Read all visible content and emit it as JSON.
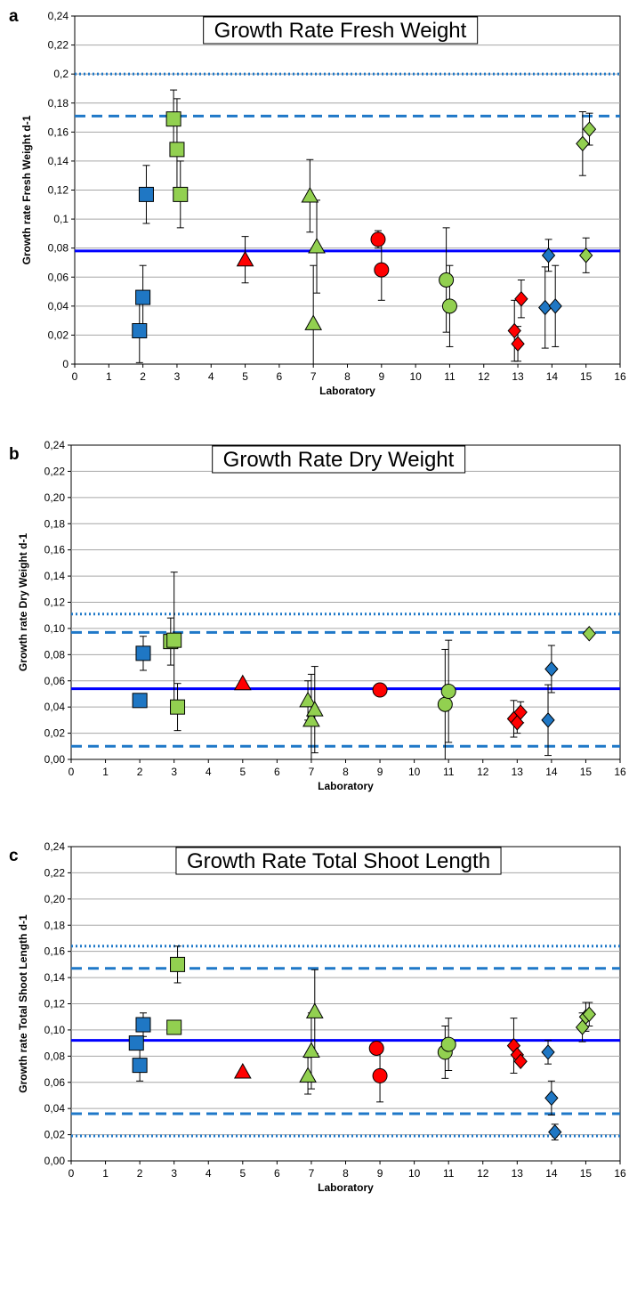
{
  "colors": {
    "lab_blue": "#1f77c4",
    "lab_green": "#92d050",
    "lab_red": "#ff0000",
    "mean_line": "#0000ff",
    "limit_line": "#1f78c8",
    "grid": "#a6a6a6"
  },
  "chart_data": [
    {
      "panel": "a",
      "type": "scatter",
      "title": "Growth Rate Fresh Weight",
      "xlabel": "Laboratory",
      "ylabel": "Growth rate Fresh Weight d-1",
      "xlim": [
        0,
        16
      ],
      "ylim": [
        0,
        0.24
      ],
      "x_ticks": [
        "0",
        "1",
        "2",
        "3",
        "4",
        "5",
        "6",
        "7",
        "8",
        "9",
        "10",
        "11",
        "12",
        "13",
        "14",
        "15",
        "16"
      ],
      "y_ticks": [
        "0",
        "0,02",
        "0,04",
        "0,06",
        "0,08",
        "0,1",
        "0,12",
        "0,14",
        "0,16",
        "0,18",
        "0,2",
        "0,22",
        "0,24"
      ],
      "grid": true,
      "reference_lines": [
        {
          "style": "solid",
          "y": 0.078
        },
        {
          "style": "dashed",
          "y": 0.171
        },
        {
          "style": "dotted",
          "y": 0.2
        }
      ],
      "points": [
        {
          "x": 1.9,
          "y": 0.023,
          "err": 0.022,
          "shape": "square",
          "color": "blue"
        },
        {
          "x": 2.0,
          "y": 0.046,
          "err": 0.022,
          "shape": "square",
          "color": "blue"
        },
        {
          "x": 2.1,
          "y": 0.117,
          "err": 0.02,
          "shape": "square",
          "color": "blue"
        },
        {
          "x": 2.9,
          "y": 0.169,
          "err": 0.02,
          "shape": "square",
          "color": "green"
        },
        {
          "x": 3.0,
          "y": 0.148,
          "err": 0.035,
          "shape": "square",
          "color": "green"
        },
        {
          "x": 3.1,
          "y": 0.117,
          "err": 0.023,
          "shape": "square",
          "color": "green"
        },
        {
          "x": 5.0,
          "y": 0.072,
          "err": 0.016,
          "shape": "triangle",
          "color": "red"
        },
        {
          "x": 6.9,
          "y": 0.116,
          "err": 0.025,
          "shape": "triangle",
          "color": "green"
        },
        {
          "x": 7.0,
          "y": 0.028,
          "err": 0.04,
          "shape": "triangle",
          "color": "green"
        },
        {
          "x": 7.1,
          "y": 0.081,
          "err": 0.032,
          "shape": "triangle",
          "color": "green"
        },
        {
          "x": 8.9,
          "y": 0.086,
          "err": 0.006,
          "shape": "circle",
          "color": "red"
        },
        {
          "x": 9.0,
          "y": 0.065,
          "err": 0.021,
          "shape": "circle",
          "color": "red"
        },
        {
          "x": 10.9,
          "y": 0.058,
          "err": 0.036,
          "shape": "circle",
          "color": "green"
        },
        {
          "x": 11.0,
          "y": 0.04,
          "err": 0.028,
          "shape": "circle",
          "color": "green"
        },
        {
          "x": 12.9,
          "y": 0.023,
          "err": 0.021,
          "shape": "diamond",
          "color": "red"
        },
        {
          "x": 13.0,
          "y": 0.014,
          "err": 0.012,
          "shape": "diamond",
          "color": "red"
        },
        {
          "x": 13.1,
          "y": 0.045,
          "err": 0.013,
          "shape": "diamond",
          "color": "red"
        },
        {
          "x": 13.8,
          "y": 0.039,
          "err": 0.028,
          "shape": "diamond",
          "color": "blue"
        },
        {
          "x": 13.9,
          "y": 0.075,
          "err": 0.011,
          "shape": "diamond",
          "color": "blue"
        },
        {
          "x": 14.1,
          "y": 0.04,
          "err": 0.028,
          "shape": "diamond",
          "color": "blue"
        },
        {
          "x": 14.9,
          "y": 0.152,
          "err": 0.022,
          "shape": "diamond",
          "color": "green"
        },
        {
          "x": 15.0,
          "y": 0.075,
          "err": 0.012,
          "shape": "diamond",
          "color": "green"
        },
        {
          "x": 15.1,
          "y": 0.162,
          "err": 0.011,
          "shape": "diamond",
          "color": "green"
        }
      ]
    },
    {
      "panel": "b",
      "type": "scatter",
      "title": "Growth Rate Dry Weight",
      "xlabel": "Laboratory",
      "ylabel": "Growth rate Dry Weight d-1",
      "xlim": [
        0,
        16
      ],
      "ylim": [
        0,
        0.24
      ],
      "x_ticks": [
        "0",
        "1",
        "2",
        "3",
        "4",
        "5",
        "6",
        "7",
        "8",
        "9",
        "10",
        "11",
        "12",
        "13",
        "14",
        "15",
        "16"
      ],
      "y_ticks": [
        "0,00",
        "0,02",
        "0,04",
        "0,06",
        "0,08",
        "0,10",
        "0,12",
        "0,14",
        "0,16",
        "0,18",
        "0,20",
        "0,22",
        "0,24"
      ],
      "grid": true,
      "reference_lines": [
        {
          "style": "solid",
          "y": 0.054
        },
        {
          "style": "dashed",
          "y": 0.097
        },
        {
          "style": "dashed",
          "y": 0.01
        },
        {
          "style": "dotted",
          "y": 0.111
        }
      ],
      "points": [
        {
          "x": 2.0,
          "y": 0.045,
          "err": 0.0,
          "shape": "square",
          "color": "blue"
        },
        {
          "x": 2.1,
          "y": 0.081,
          "err": 0.013,
          "shape": "square",
          "color": "blue"
        },
        {
          "x": 2.9,
          "y": 0.09,
          "err": 0.018,
          "shape": "square",
          "color": "green"
        },
        {
          "x": 3.0,
          "y": 0.091,
          "err": 0.052,
          "shape": "square",
          "color": "green"
        },
        {
          "x": 3.1,
          "y": 0.04,
          "err": 0.018,
          "shape": "square",
          "color": "green"
        },
        {
          "x": 5.0,
          "y": 0.058,
          "err": 0.0,
          "shape": "triangle",
          "color": "red"
        },
        {
          "x": 6.9,
          "y": 0.045,
          "err": 0.015,
          "shape": "triangle",
          "color": "green"
        },
        {
          "x": 7.0,
          "y": 0.03,
          "err": 0.035,
          "shape": "triangle",
          "color": "green"
        },
        {
          "x": 7.1,
          "y": 0.038,
          "err": 0.033,
          "shape": "triangle",
          "color": "green"
        },
        {
          "x": 9.0,
          "y": 0.053,
          "err": 0.0,
          "shape": "circle",
          "color": "red"
        },
        {
          "x": 10.9,
          "y": 0.042,
          "err": 0.042,
          "shape": "circle",
          "color": "green"
        },
        {
          "x": 11.0,
          "y": 0.052,
          "err": 0.039,
          "shape": "circle",
          "color": "green"
        },
        {
          "x": 12.9,
          "y": 0.031,
          "err": 0.014,
          "shape": "diamond",
          "color": "red"
        },
        {
          "x": 13.0,
          "y": 0.028,
          "err": 0.008,
          "shape": "diamond",
          "color": "red"
        },
        {
          "x": 13.1,
          "y": 0.036,
          "err": 0.008,
          "shape": "diamond",
          "color": "red"
        },
        {
          "x": 13.9,
          "y": 0.03,
          "err": 0.027,
          "shape": "diamond",
          "color": "blue"
        },
        {
          "x": 14.0,
          "y": 0.069,
          "err": 0.018,
          "shape": "diamond",
          "color": "blue"
        },
        {
          "x": 15.1,
          "y": 0.096,
          "err": 0.0,
          "shape": "diamond",
          "color": "green"
        }
      ]
    },
    {
      "panel": "c",
      "type": "scatter",
      "title": "Growth Rate Total Shoot Length",
      "xlabel": "Laboratory",
      "ylabel": "Growth rate Total Shoot Length d-1",
      "xlim": [
        0,
        16
      ],
      "ylim": [
        0,
        0.24
      ],
      "x_ticks": [
        "0",
        "1",
        "2",
        "3",
        "4",
        "5",
        "6",
        "7",
        "8",
        "9",
        "10",
        "11",
        "12",
        "13",
        "14",
        "15",
        "16"
      ],
      "y_ticks": [
        "0,00",
        "0,02",
        "0,04",
        "0,06",
        "0,08",
        "0,10",
        "0,12",
        "0,14",
        "0,16",
        "0,18",
        "0,20",
        "0,22",
        "0,24"
      ],
      "grid": true,
      "reference_lines": [
        {
          "style": "solid",
          "y": 0.092
        },
        {
          "style": "dashed",
          "y": 0.147
        },
        {
          "style": "dashed",
          "y": 0.036
        },
        {
          "style": "dotted",
          "y": 0.164
        },
        {
          "style": "dotted",
          "y": 0.019
        }
      ],
      "points": [
        {
          "x": 1.9,
          "y": 0.09,
          "err": 0.0,
          "shape": "square",
          "color": "blue"
        },
        {
          "x": 2.0,
          "y": 0.073,
          "err": 0.012,
          "shape": "square",
          "color": "blue"
        },
        {
          "x": 2.1,
          "y": 0.104,
          "err": 0.009,
          "shape": "square",
          "color": "blue"
        },
        {
          "x": 3.0,
          "y": 0.102,
          "err": 0.0,
          "shape": "square",
          "color": "green"
        },
        {
          "x": 3.1,
          "y": 0.15,
          "err": 0.014,
          "shape": "square",
          "color": "green"
        },
        {
          "x": 5.0,
          "y": 0.068,
          "err": 0.0,
          "shape": "triangle",
          "color": "red"
        },
        {
          "x": 6.9,
          "y": 0.065,
          "err": 0.014,
          "shape": "triangle",
          "color": "green"
        },
        {
          "x": 7.0,
          "y": 0.084,
          "err": 0.029,
          "shape": "triangle",
          "color": "green"
        },
        {
          "x": 7.1,
          "y": 0.114,
          "err": 0.032,
          "shape": "triangle",
          "color": "green"
        },
        {
          "x": 8.9,
          "y": 0.086,
          "err": 0.0,
          "shape": "circle",
          "color": "red"
        },
        {
          "x": 9.0,
          "y": 0.065,
          "err": 0.02,
          "shape": "circle",
          "color": "red"
        },
        {
          "x": 10.9,
          "y": 0.083,
          "err": 0.02,
          "shape": "circle",
          "color": "green"
        },
        {
          "x": 11.0,
          "y": 0.089,
          "err": 0.02,
          "shape": "circle",
          "color": "green"
        },
        {
          "x": 12.9,
          "y": 0.088,
          "err": 0.021,
          "shape": "diamond",
          "color": "red"
        },
        {
          "x": 13.0,
          "y": 0.081,
          "err": 0.0,
          "shape": "diamond",
          "color": "red"
        },
        {
          "x": 13.1,
          "y": 0.076,
          "err": 0.0,
          "shape": "diamond",
          "color": "red"
        },
        {
          "x": 13.9,
          "y": 0.083,
          "err": 0.009,
          "shape": "diamond",
          "color": "blue"
        },
        {
          "x": 14.0,
          "y": 0.048,
          "err": 0.013,
          "shape": "diamond",
          "color": "blue"
        },
        {
          "x": 14.1,
          "y": 0.022,
          "err": 0.006,
          "shape": "diamond",
          "color": "blue"
        },
        {
          "x": 14.9,
          "y": 0.102,
          "err": 0.011,
          "shape": "diamond",
          "color": "green"
        },
        {
          "x": 15.0,
          "y": 0.11,
          "err": 0.011,
          "shape": "diamond",
          "color": "green"
        },
        {
          "x": 15.1,
          "y": 0.112,
          "err": 0.009,
          "shape": "diamond",
          "color": "green"
        }
      ]
    }
  ]
}
